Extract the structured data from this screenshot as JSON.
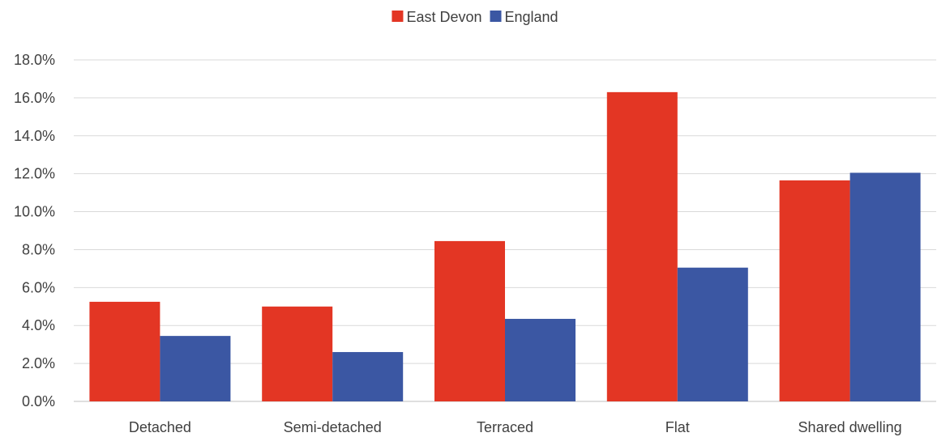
{
  "chart_data": {
    "type": "bar",
    "categories": [
      "Detached",
      "Semi-detached",
      "Terraced",
      "Flat",
      "Shared dwelling"
    ],
    "series": [
      {
        "name": "East Devon",
        "color": "#e33624",
        "values": [
          5.25,
          5.0,
          8.45,
          16.3,
          11.65
        ]
      },
      {
        "name": "England",
        "color": "#3b57a3",
        "values": [
          3.45,
          2.6,
          4.35,
          7.05,
          12.05
        ]
      }
    ],
    "ylim": [
      0,
      18
    ],
    "yticks": [
      0,
      2,
      4,
      6,
      8,
      10,
      12,
      14,
      16,
      18
    ],
    "ytick_labels": [
      "0.0%",
      "2.0%",
      "4.0%",
      "6.0%",
      "8.0%",
      "10.0%",
      "12.0%",
      "14.0%",
      "16.0%",
      "18.0%"
    ],
    "grid": true,
    "legend_position": "top"
  }
}
